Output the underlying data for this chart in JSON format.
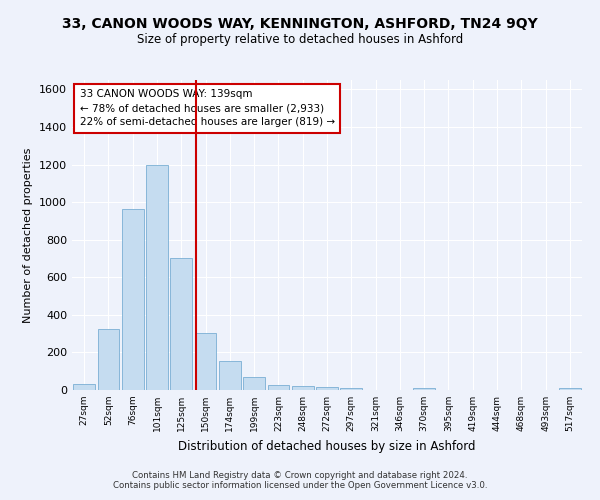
{
  "title": "33, CANON WOODS WAY, KENNINGTON, ASHFORD, TN24 9QY",
  "subtitle": "Size of property relative to detached houses in Ashford",
  "xlabel": "Distribution of detached houses by size in Ashford",
  "ylabel": "Number of detached properties",
  "bar_color": "#c5dcf0",
  "bar_edge_color": "#7aafd4",
  "background_color": "#eef2fb",
  "grid_color": "#ffffff",
  "categories": [
    "27sqm",
    "52sqm",
    "76sqm",
    "101sqm",
    "125sqm",
    "150sqm",
    "174sqm",
    "199sqm",
    "223sqm",
    "248sqm",
    "272sqm",
    "297sqm",
    "321sqm",
    "346sqm",
    "370sqm",
    "395sqm",
    "419sqm",
    "444sqm",
    "468sqm",
    "493sqm",
    "517sqm"
  ],
  "values": [
    30,
    325,
    965,
    1195,
    700,
    305,
    155,
    70,
    28,
    20,
    15,
    10,
    0,
    0,
    12,
    0,
    0,
    0,
    0,
    0,
    12
  ],
  "ylim": [
    0,
    1650
  ],
  "yticks": [
    0,
    200,
    400,
    600,
    800,
    1000,
    1200,
    1400,
    1600
  ],
  "vline_x": 4.62,
  "vline_color": "#cc0000",
  "annotation_line1": "33 CANON WOODS WAY: 139sqm",
  "annotation_line2": "← 78% of detached houses are smaller (2,933)",
  "annotation_line3": "22% of semi-detached houses are larger (819) →",
  "annotation_box_color": "#ffffff",
  "annotation_box_edge": "#cc0000",
  "footer_line1": "Contains HM Land Registry data © Crown copyright and database right 2024.",
  "footer_line2": "Contains public sector information licensed under the Open Government Licence v3.0."
}
